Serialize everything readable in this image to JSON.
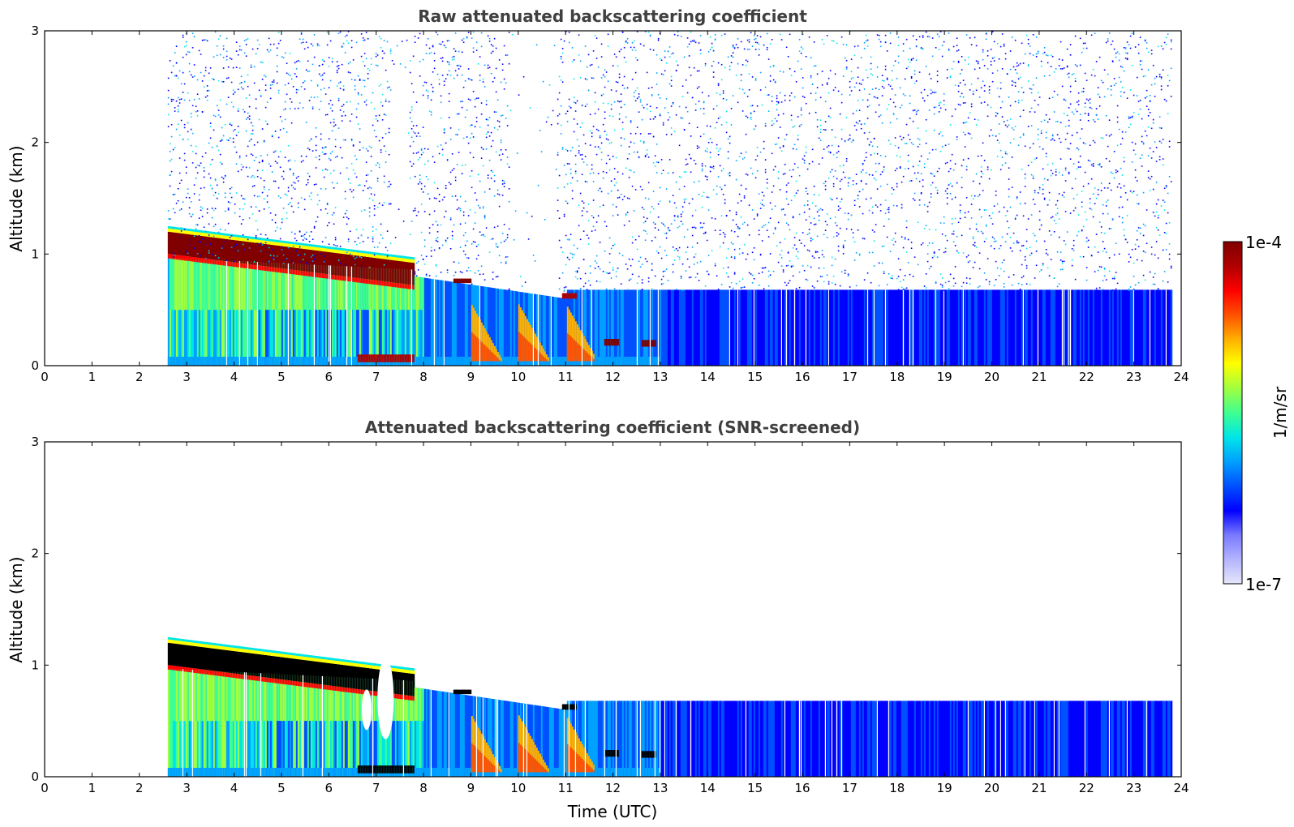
{
  "figure_labels": {
    "ylabel": "Altitude (km)",
    "xlabel": "Time (UTC)"
  },
  "chart_data": [
    {
      "type": "heatmap",
      "title": "Raw attenuated backscattering coefficient",
      "xlabel": "",
      "ylabel": "Altitude (km)",
      "xlim": [
        0,
        24
      ],
      "ylim": [
        0,
        3
      ],
      "xticks": [
        "0",
        "1",
        "2",
        "3",
        "4",
        "5",
        "6",
        "7",
        "8",
        "9",
        "10",
        "11",
        "12",
        "13",
        "14",
        "15",
        "16",
        "17",
        "18",
        "19",
        "20",
        "21",
        "22",
        "23",
        "24"
      ],
      "yticks": [
        "0",
        "1",
        "2",
        "3"
      ],
      "data_time_range": [
        2.6,
        23.8
      ],
      "features": [
        {
          "name": "cloud top layer",
          "time": [
            2.6,
            7.8
          ],
          "altitude_top": [
            1.2,
            0.88
          ],
          "altitude_base": [
            0.97,
            0.85
          ],
          "level": "1e-4 (saturated)"
        },
        {
          "name": "boundary layer aerosol",
          "time": [
            2.6,
            13.0
          ],
          "altitude_top": [
            0.97,
            0.4
          ],
          "level": "moderate"
        },
        {
          "name": "precipitation streaks",
          "time": [
            9.0,
            11.6
          ],
          "altitude_top": [
            0.75,
            0.5
          ],
          "level": "high"
        },
        {
          "name": "residual layer",
          "time": [
            11.0,
            23.8
          ],
          "altitude_top": [
            0.7,
            0.7
          ],
          "level": "low"
        },
        {
          "name": "background noise",
          "time": [
            2.6,
            23.8
          ],
          "altitude": [
            0.7,
            3.0
          ],
          "level": "noise"
        }
      ]
    },
    {
      "type": "heatmap",
      "title": "Attenuated backscattering coefficient (SNR-screened)",
      "xlabel": "Time (UTC)",
      "ylabel": "Altitude (km)",
      "xlim": [
        0,
        24
      ],
      "ylim": [
        0,
        3
      ],
      "xticks": [
        "0",
        "1",
        "2",
        "3",
        "4",
        "5",
        "6",
        "7",
        "8",
        "9",
        "10",
        "11",
        "12",
        "13",
        "14",
        "15",
        "16",
        "17",
        "18",
        "19",
        "20",
        "21",
        "22",
        "23",
        "24"
      ],
      "yticks": [
        "0",
        "1",
        "2",
        "3"
      ],
      "data_time_range": [
        2.6,
        23.8
      ],
      "features": [
        {
          "name": "cloud top layer (masked)",
          "time": [
            2.6,
            7.8
          ],
          "altitude_top": [
            1.2,
            0.88
          ],
          "level": "masked black"
        },
        {
          "name": "boundary layer aerosol",
          "time": [
            2.6,
            13.0
          ],
          "altitude_top": [
            0.97,
            0.4
          ],
          "level": "moderate"
        },
        {
          "name": "precipitation streaks",
          "time": [
            9.0,
            11.6
          ],
          "altitude_top": [
            0.75,
            0.5
          ],
          "level": "high"
        },
        {
          "name": "residual layer",
          "time": [
            11.0,
            23.8
          ],
          "altitude_top": [
            0.67,
            0.67
          ],
          "level": "low"
        }
      ]
    }
  ],
  "colorbar": {
    "label": "1/m/sr",
    "min_label": "1e-7",
    "max_label": "1e-4",
    "scale": "log",
    "colormap": "jet",
    "colors": [
      "#e6e6fa",
      "#b4b4ff",
      "#7878ff",
      "#0000ff",
      "#0050ff",
      "#00a0ff",
      "#00e6e6",
      "#40ff90",
      "#a0ff40",
      "#ffff00",
      "#ffb000",
      "#ff5000",
      "#ff0000",
      "#b00000",
      "#800000"
    ]
  }
}
